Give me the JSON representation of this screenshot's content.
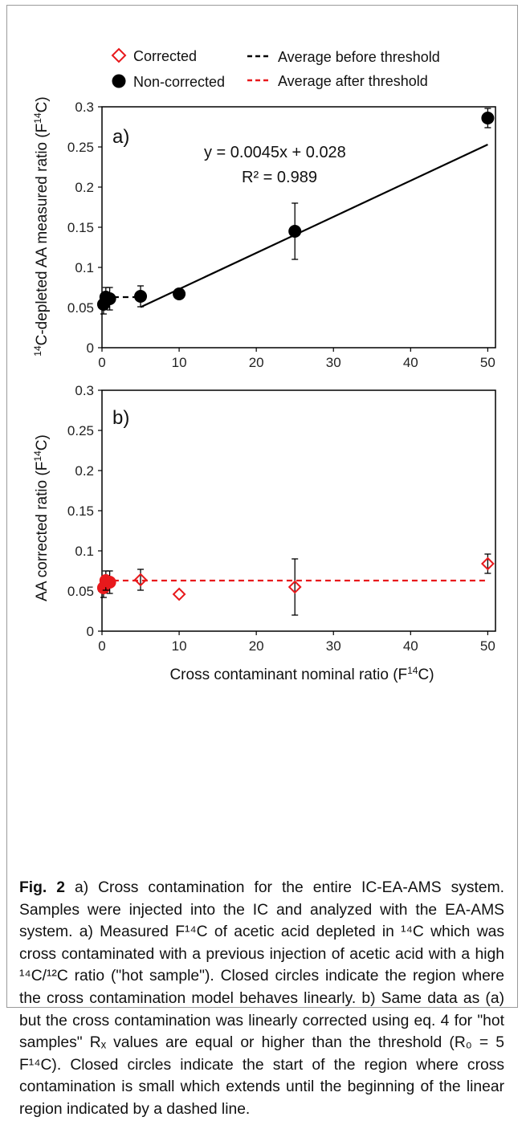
{
  "legend": {
    "corrected": "Corrected",
    "non_corrected": "Non-corrected",
    "avg_before": "Average before threshold",
    "avg_after": "Average after threshold"
  },
  "chart_data": [
    {
      "type": "scatter",
      "panel": "a)",
      "xlabel": "",
      "ylabel": "14C-depleted AA measured ratio (F14C)",
      "xlim": [
        0,
        51
      ],
      "ylim": [
        0,
        0.3
      ],
      "xticks": [
        0,
        10,
        20,
        30,
        40,
        50
      ],
      "yticks": [
        0,
        0.05,
        0.1,
        0.15,
        0.2,
        0.25,
        0.3
      ],
      "series": [
        {
          "name": "Non-corrected",
          "marker": "filled-circle",
          "color": "#000000",
          "points": [
            {
              "x": 0.2,
              "y": 0.054,
              "err": 0.012
            },
            {
              "x": 0.5,
              "y": 0.063,
              "err": 0.012
            },
            {
              "x": 1,
              "y": 0.061,
              "err": 0.014
            },
            {
              "x": 5,
              "y": 0.064,
              "err": 0.013
            },
            {
              "x": 10,
              "y": 0.067,
              "err": 0
            },
            {
              "x": 25,
              "y": 0.145,
              "err": 0.035
            },
            {
              "x": 50,
              "y": 0.286,
              "err": 0.012
            }
          ]
        }
      ],
      "lines": [
        {
          "name": "Average before threshold",
          "style": "dashed",
          "color": "#000000",
          "x": [
            0.2,
            5
          ],
          "y": [
            0.063,
            0.063
          ]
        },
        {
          "name": "fit",
          "style": "solid",
          "color": "#000000",
          "x": [
            5,
            50
          ],
          "y": [
            0.0505,
            0.253
          ]
        }
      ],
      "annotation": {
        "equation": "y = 0.0045x + 0.028",
        "r2": "R² = 0.989"
      }
    },
    {
      "type": "scatter",
      "panel": "b)",
      "xlabel": "Cross contaminant nominal ratio (F14C)",
      "ylabel": "AA corrected ratio (F14C)",
      "xlim": [
        0,
        51
      ],
      "ylim": [
        0,
        0.3
      ],
      "xticks": [
        0,
        10,
        20,
        30,
        40,
        50
      ],
      "yticks": [
        0,
        0.05,
        0.1,
        0.15,
        0.2,
        0.25,
        0.3
      ],
      "series": [
        {
          "name": "Corrected",
          "marker": "open-diamond",
          "color": "#e8191c",
          "points": [
            {
              "x": 5,
              "y": 0.064,
              "err": 0.013
            },
            {
              "x": 10,
              "y": 0.046,
              "err": 0
            },
            {
              "x": 25,
              "y": 0.055,
              "err": 0.035
            },
            {
              "x": 50,
              "y": 0.084,
              "err": 0.012
            }
          ]
        },
        {
          "name": "Non-corrected (red filled)",
          "marker": "filled-circle",
          "color": "#e8191c",
          "points": [
            {
              "x": 0.2,
              "y": 0.054,
              "err": 0.012
            },
            {
              "x": 0.5,
              "y": 0.063,
              "err": 0.012
            },
            {
              "x": 1,
              "y": 0.061,
              "err": 0.014
            }
          ]
        }
      ],
      "lines": [
        {
          "name": "Average after threshold",
          "style": "dashed",
          "color": "#e8191c",
          "x": [
            0.2,
            50
          ],
          "y": [
            0.063,
            0.063
          ]
        }
      ]
    }
  ],
  "caption": {
    "fig": "Fig. 2",
    "text": " a) Cross contamination for the entire IC-EA-AMS system. Samples were injected into the IC and analyzed with the EA-AMS system. a) Measured F¹⁴C of acetic acid depleted in ¹⁴C which was cross contaminated with a previous injection of acetic acid with a high ¹⁴C/¹²C ratio (\"hot sample\"). Closed circles indicate the region where the cross contamination model behaves linearly. b) Same data as (a) but the cross contamination was linearly corrected using eq. 4 for \"hot samples\" Rₓ values are equal or higher than the threshold (R₀ = 5 F¹⁴C). Closed circles indicate the start of the region where cross contamination is small which extends until the beginning of the linear region indicated by a dashed line."
  }
}
